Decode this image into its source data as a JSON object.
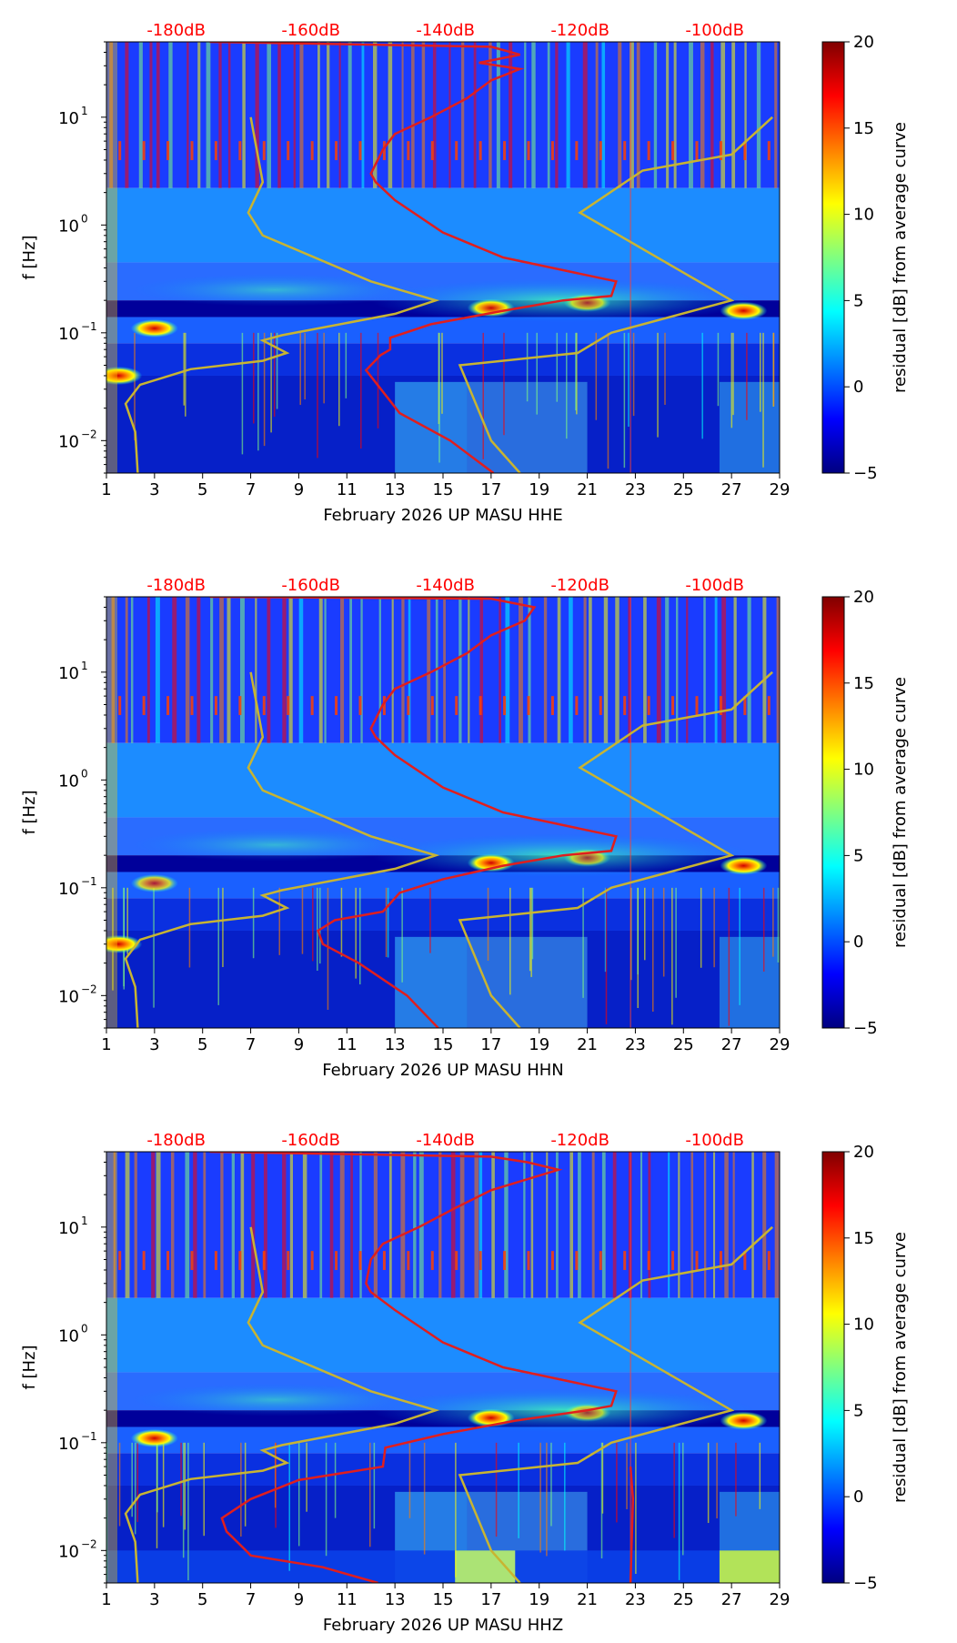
{
  "chart_data": {
    "type": "heatmap",
    "colorbar": {
      "label": "residual [dB] from average curve",
      "range": [
        -5,
        20
      ],
      "ticks": [
        "20",
        "15",
        "10",
        "5",
        "0",
        "−5"
      ],
      "tick_values": [
        20,
        15,
        10,
        5,
        0,
        -5
      ],
      "colormap": [
        "#000080",
        "#0000ff",
        "#0080ff",
        "#00ffff",
        "#80ff80",
        "#ffff00",
        "#ff8000",
        "#ff0000",
        "#800000"
      ]
    },
    "x_axis": {
      "range": [
        1,
        29
      ],
      "ticks": [
        1,
        3,
        5,
        7,
        9,
        11,
        13,
        15,
        17,
        19,
        21,
        23,
        25,
        27,
        29
      ],
      "tick_labels": [
        "1",
        "3",
        "5",
        "7",
        "9",
        "11",
        "13",
        "15",
        "17",
        "19",
        "21",
        "23",
        "25",
        "27",
        "29"
      ]
    },
    "y_axis": {
      "label": "f [Hz]",
      "scale": "log",
      "range": [
        0.005,
        50
      ],
      "ticks": [
        0.01,
        0.1,
        1,
        10
      ],
      "tick_labels": [
        "10",
        "10",
        "10",
        "10"
      ],
      "tick_exponents": [
        "−2",
        "−1",
        "0",
        "1"
      ]
    },
    "db_axis": {
      "color": "#ff0000",
      "ticks_day": [
        3.9,
        9.5,
        15.1,
        20.7,
        26.3
      ],
      "labels": [
        "-180dB",
        "-160dB",
        "-140dB",
        "-120dB",
        "-100dB"
      ]
    },
    "noise_model_color": "#c8b432",
    "psd_curve_color": "#e01e1e",
    "noise_models": {
      "low": [
        [
          2.3,
          0.005
        ],
        [
          2.2,
          0.012
        ],
        [
          1.8,
          0.022
        ],
        [
          2.4,
          0.033
        ],
        [
          4.5,
          0.046
        ],
        [
          7.5,
          0.055
        ],
        [
          8.5,
          0.065
        ],
        [
          7.5,
          0.085
        ],
        [
          8.3,
          0.095
        ],
        [
          13.0,
          0.15
        ],
        [
          14.7,
          0.2
        ],
        [
          12.0,
          0.3
        ],
        [
          7.5,
          0.8
        ],
        [
          6.9,
          1.3
        ],
        [
          7.5,
          2.5
        ],
        [
          7.0,
          10.0
        ]
      ],
      "high": [
        [
          18.2,
          0.005
        ],
        [
          17.0,
          0.01
        ],
        [
          15.7,
          0.05
        ],
        [
          20.6,
          0.065
        ],
        [
          22.0,
          0.1
        ],
        [
          27.0,
          0.2
        ],
        [
          20.7,
          1.3
        ],
        [
          23.3,
          3.2
        ],
        [
          27.0,
          4.5
        ],
        [
          28.7,
          10.0
        ]
      ]
    },
    "panels": [
      {
        "title": "February 2026 UP MASU  HHE",
        "psd_curve": [
          [
            17.1,
            0.005
          ],
          [
            15.3,
            0.01
          ],
          [
            13.2,
            0.018
          ],
          [
            11.8,
            0.045
          ],
          [
            12.4,
            0.062
          ],
          [
            12.8,
            0.07
          ],
          [
            12.8,
            0.09
          ],
          [
            14.5,
            0.12
          ],
          [
            17.5,
            0.16
          ],
          [
            20.0,
            0.2
          ],
          [
            22.0,
            0.22
          ],
          [
            22.2,
            0.3
          ],
          [
            17.5,
            0.5
          ],
          [
            15.0,
            0.85
          ],
          [
            13.0,
            1.7
          ],
          [
            12.2,
            2.5
          ],
          [
            12.0,
            3.0
          ],
          [
            12.5,
            5.0
          ],
          [
            13.0,
            7.0
          ],
          [
            14.5,
            10.0
          ],
          [
            16.0,
            15.0
          ],
          [
            17.0,
            22.0
          ],
          [
            18.2,
            28.0
          ],
          [
            16.5,
            32.0
          ],
          [
            18.2,
            38.0
          ],
          [
            17.0,
            45.0
          ],
          [
            5.3,
            50.0
          ]
        ],
        "hot_spots": [
          {
            "day": 3.0,
            "freq": 0.11,
            "level": 18
          },
          {
            "day": 17.0,
            "freq": 0.17,
            "level": 17
          },
          {
            "day": 21.0,
            "freq": 0.19,
            "level": 13
          },
          {
            "day": 27.5,
            "freq": 0.16,
            "level": 18
          },
          {
            "day": 1.5,
            "freq": 0.04,
            "level": 19
          }
        ]
      },
      {
        "title": "February 2026 UP MASU  HHN",
        "psd_curve": [
          [
            14.8,
            0.005
          ],
          [
            13.5,
            0.01
          ],
          [
            11.5,
            0.02
          ],
          [
            10.0,
            0.03
          ],
          [
            9.8,
            0.04
          ],
          [
            10.5,
            0.05
          ],
          [
            12.5,
            0.06
          ],
          [
            13.2,
            0.09
          ],
          [
            15.0,
            0.12
          ],
          [
            17.5,
            0.16
          ],
          [
            20.0,
            0.2
          ],
          [
            22.0,
            0.22
          ],
          [
            22.2,
            0.3
          ],
          [
            17.5,
            0.5
          ],
          [
            15.0,
            0.85
          ],
          [
            13.0,
            1.7
          ],
          [
            12.2,
            2.5
          ],
          [
            12.0,
            3.0
          ],
          [
            12.5,
            5.0
          ],
          [
            13.0,
            7.0
          ],
          [
            14.5,
            10.0
          ],
          [
            16.0,
            15.0
          ],
          [
            17.0,
            22.0
          ],
          [
            18.4,
            30.0
          ],
          [
            18.8,
            40.0
          ],
          [
            17.0,
            48.0
          ],
          [
            5.3,
            50.0
          ]
        ],
        "hot_spots": [
          {
            "day": 3.0,
            "freq": 0.11,
            "level": 14
          },
          {
            "day": 17.0,
            "freq": 0.17,
            "level": 18
          },
          {
            "day": 21.0,
            "freq": 0.19,
            "level": 12
          },
          {
            "day": 27.5,
            "freq": 0.16,
            "level": 18
          },
          {
            "day": 1.5,
            "freq": 0.03,
            "level": 19
          }
        ]
      },
      {
        "title": "February 2026 UP MASU  HHZ",
        "psd_curve": [
          [
            12.3,
            0.005
          ],
          [
            10.0,
            0.007
          ],
          [
            7.0,
            0.009
          ],
          [
            6.8,
            0.01
          ],
          [
            6.0,
            0.015
          ],
          [
            5.8,
            0.02
          ],
          [
            7.0,
            0.03
          ],
          [
            9.0,
            0.045
          ],
          [
            12.5,
            0.06
          ],
          [
            12.6,
            0.09
          ],
          [
            15.0,
            0.12
          ],
          [
            18.0,
            0.16
          ],
          [
            21.0,
            0.2
          ],
          [
            22.0,
            0.22
          ],
          [
            22.2,
            0.3
          ],
          [
            17.5,
            0.5
          ],
          [
            15.0,
            0.85
          ],
          [
            13.0,
            1.7
          ],
          [
            12.0,
            2.5
          ],
          [
            11.8,
            3.0
          ],
          [
            12.0,
            5.0
          ],
          [
            12.5,
            7.0
          ],
          [
            14.0,
            10.0
          ],
          [
            15.5,
            15.0
          ],
          [
            17.0,
            22.0
          ],
          [
            19.8,
            34.0
          ],
          [
            18.5,
            40.0
          ],
          [
            17.0,
            45.0
          ],
          [
            5.3,
            50.0
          ]
        ],
        "right_curve": [
          [
            22.8,
            0.005
          ],
          [
            22.9,
            0.03
          ],
          [
            22.8,
            0.06
          ]
        ],
        "hot_spots": [
          {
            "day": 3.0,
            "freq": 0.11,
            "level": 18
          },
          {
            "day": 17.0,
            "freq": 0.17,
            "level": 18
          },
          {
            "day": 21.0,
            "freq": 0.19,
            "level": 12
          },
          {
            "day": 27.5,
            "freq": 0.16,
            "level": 18
          }
        ]
      }
    ]
  }
}
